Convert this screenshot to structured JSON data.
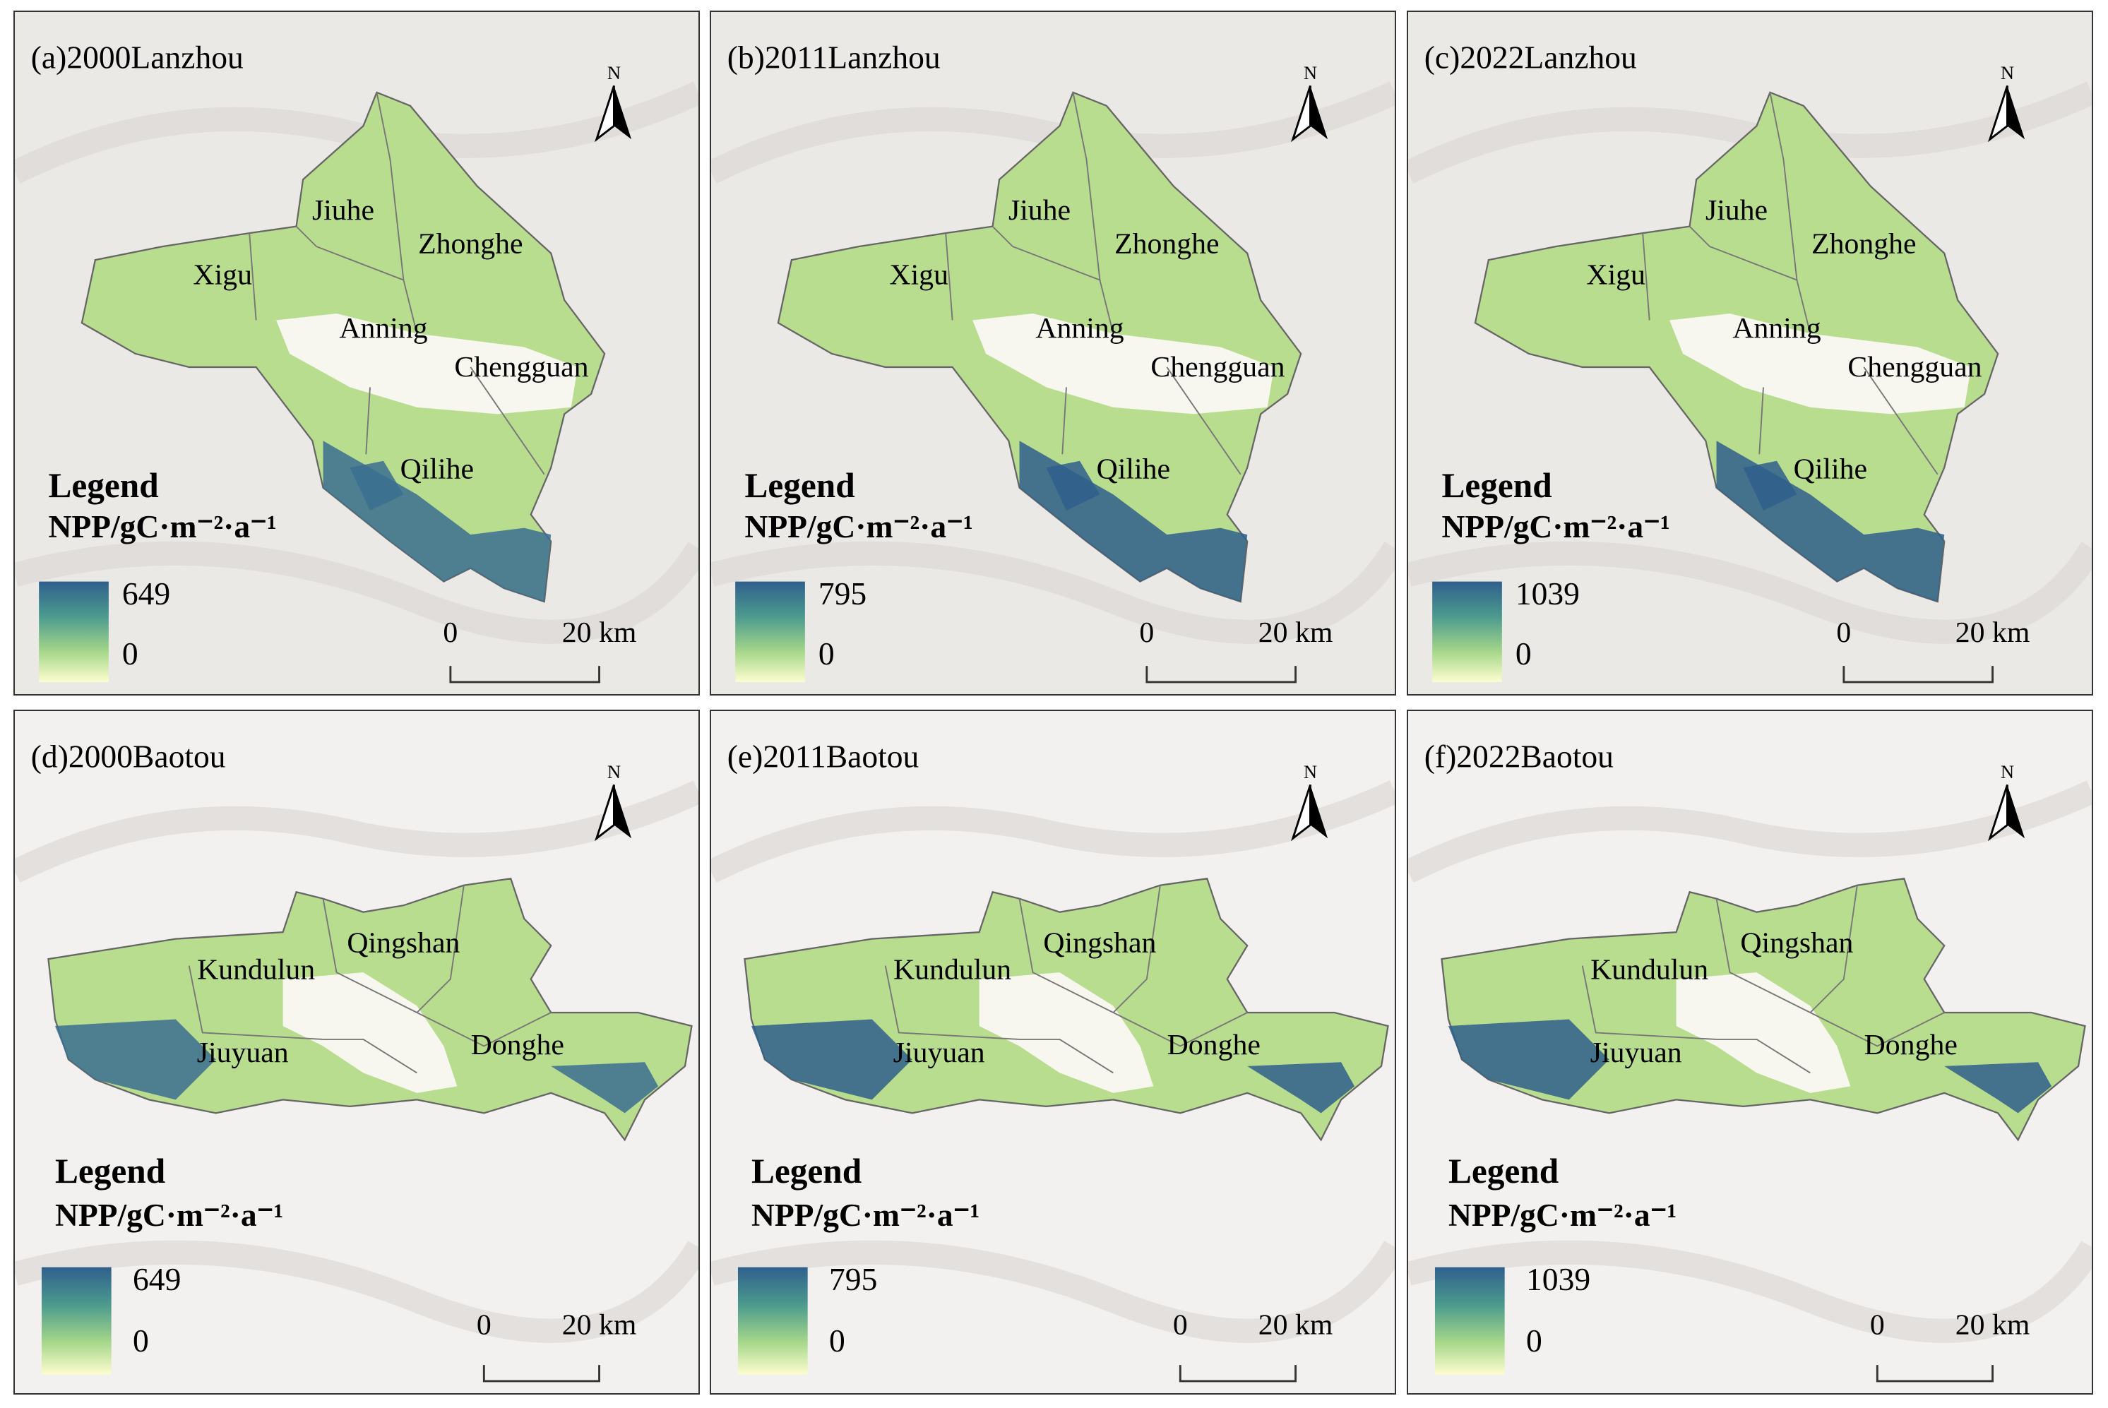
{
  "panels": [
    {
      "title": "(a)2000Lanzhou",
      "north": "N",
      "districts": [
        "Jiuhe",
        "Zhonghe",
        "Xigu",
        "Anning",
        "Chengguan",
        "Qilihe"
      ],
      "legend": {
        "title": "Legend",
        "unit": "NPP/gC·m⁻²·a⁻¹",
        "max": 649,
        "min": 0
      },
      "scale_bar": {
        "start": "0",
        "end": "20 km"
      }
    },
    {
      "title": "(b)2011Lanzhou",
      "north": "N",
      "districts": [
        "Jiuhe",
        "Zhonghe",
        "Xigu",
        "Anning",
        "Chengguan",
        "Qilihe"
      ],
      "legend": {
        "title": "Legend",
        "unit": "NPP/gC·m⁻²·a⁻¹",
        "max": 795,
        "min": 0
      },
      "scale_bar": {
        "start": "0",
        "end": "20 km"
      }
    },
    {
      "title": "(c)2022Lanzhou",
      "north": "N",
      "districts": [
        "Jiuhe",
        "Zhonghe",
        "Xigu",
        "Anning",
        "Chengguan",
        "Qilihe"
      ],
      "legend": {
        "title": "Legend",
        "unit": "NPP/gC·m⁻²·a⁻¹",
        "max": 1039,
        "min": 0
      },
      "scale_bar": {
        "start": "0",
        "end": "20 km"
      }
    },
    {
      "title": "(d)2000Baotou",
      "north": "N",
      "districts": [
        "Qingshan",
        "Kundulun",
        "Jiuyuan",
        "Donghe"
      ],
      "legend": {
        "title": "Legend",
        "unit": "NPP/gC·m⁻²·a⁻¹",
        "max": 649,
        "min": 0
      },
      "scale_bar": {
        "start": "0",
        "end": "20 km"
      }
    },
    {
      "title": "(e)2011Baotou",
      "north": "N",
      "districts": [
        "Qingshan",
        "Kundulun",
        "Jiuyuan",
        "Donghe"
      ],
      "legend": {
        "title": "Legend",
        "unit": "NPP/gC·m⁻²·a⁻¹",
        "max": 795,
        "min": 0
      },
      "scale_bar": {
        "start": "0",
        "end": "20 km"
      }
    },
    {
      "title": "(f)2022Baotou",
      "north": "N",
      "districts": [
        "Qingshan",
        "Kundulun",
        "Jiuyuan",
        "Donghe"
      ],
      "legend": {
        "title": "Legend",
        "unit": "NPP/gC·m⁻²·a⁻¹",
        "max": 1039,
        "min": 0
      },
      "scale_bar": {
        "start": "0",
        "end": "20 km"
      }
    }
  ]
}
